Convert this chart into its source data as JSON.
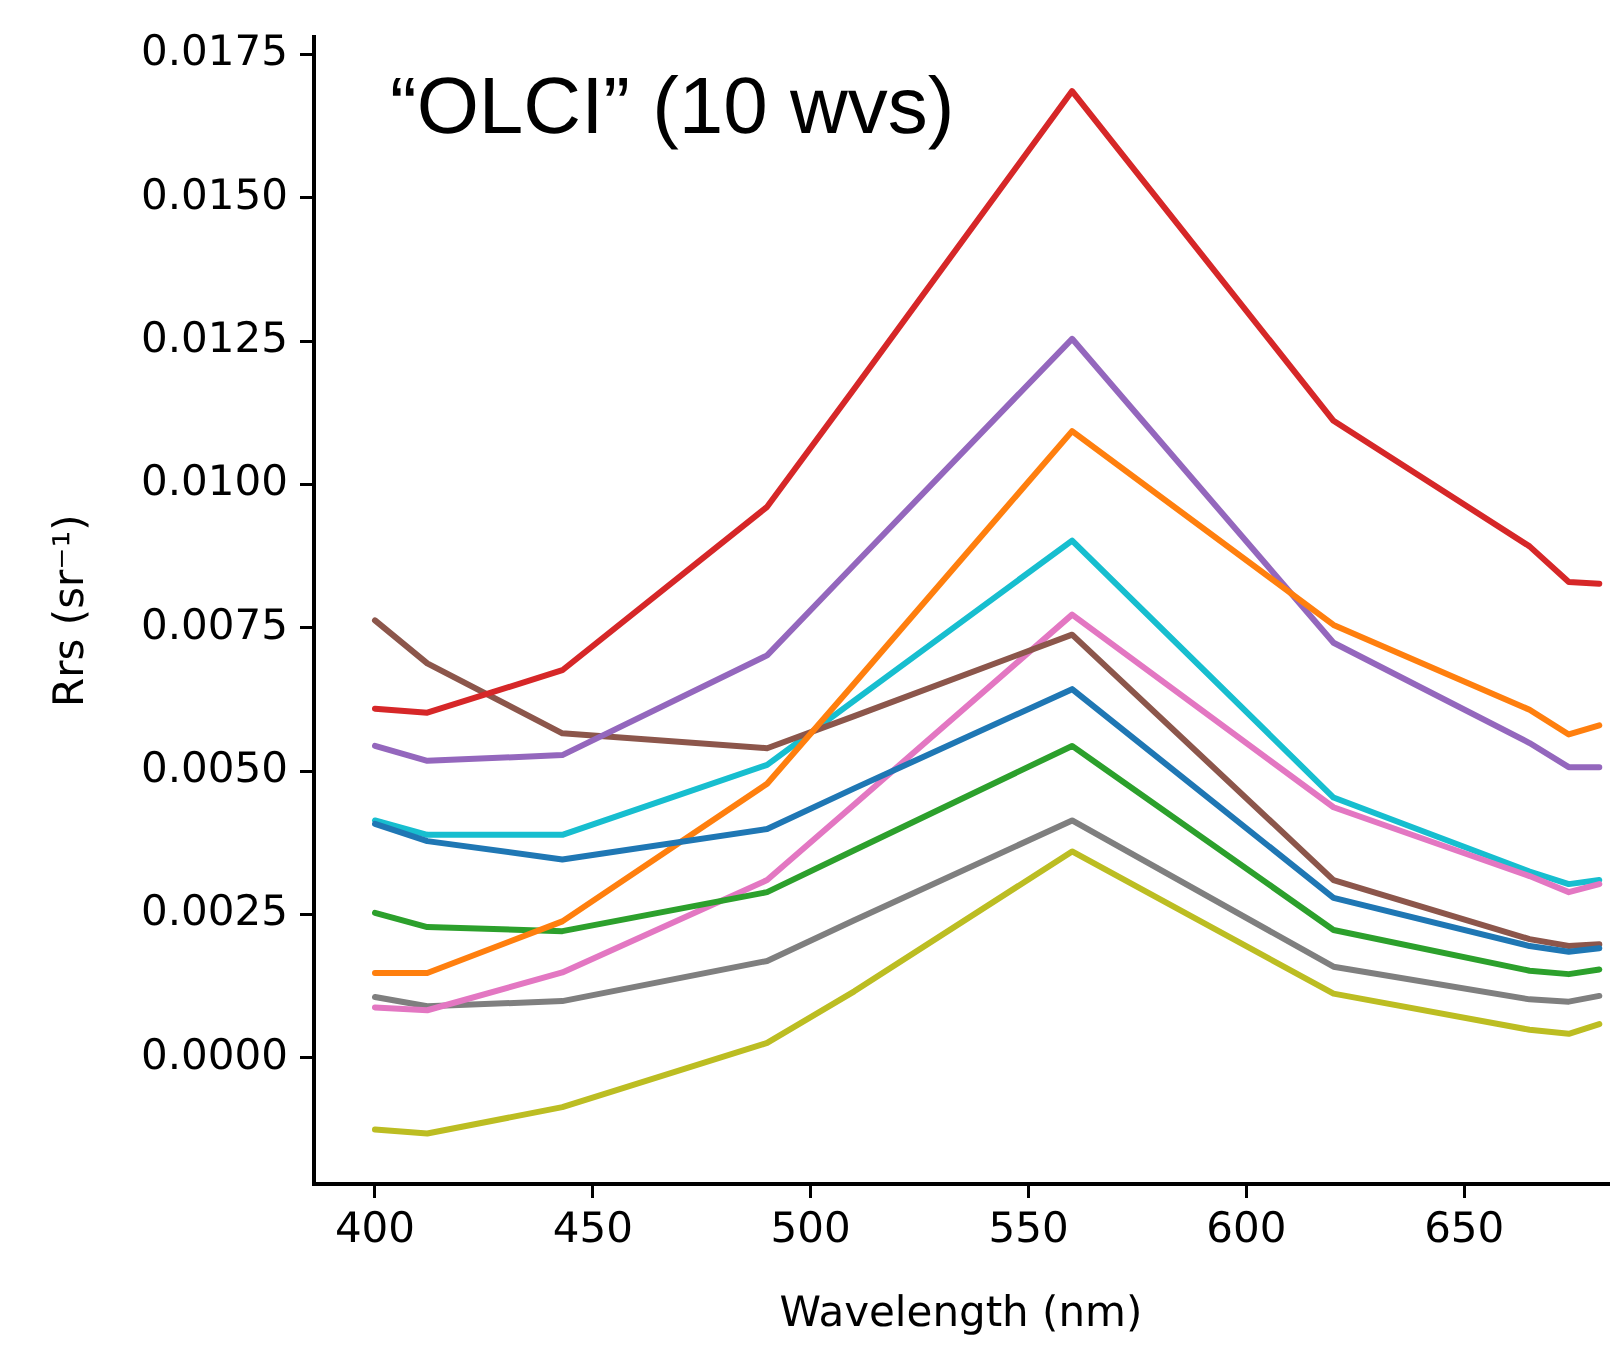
{
  "chart_data": {
    "type": "line",
    "title": "“OLCI” (10 wvs)",
    "xlabel": "Wavelength (nm)",
    "ylabel": "Rrs (sr⁻¹)",
    "x": [
      400,
      412,
      443,
      490,
      510,
      560,
      620,
      665,
      674,
      681
    ],
    "series": [
      {
        "color": "#1f77b4",
        "values": [
          0.00408,
          0.00378,
          0.00346,
          0.00399,
          0.0047,
          0.00643,
          0.00279,
          0.00195,
          0.00185,
          0.00191
        ]
      },
      {
        "color": "#ff7f0e",
        "values": [
          0.00148,
          0.00148,
          0.00238,
          0.00478,
          0.00653,
          0.01093,
          0.00755,
          0.00607,
          0.00564,
          0.0058
        ]
      },
      {
        "color": "#2ca02c",
        "values": [
          0.00253,
          0.00228,
          0.00221,
          0.00289,
          0.00362,
          0.00544,
          0.00223,
          0.00152,
          0.00146,
          0.00154
        ]
      },
      {
        "color": "#d62728",
        "values": [
          0.00609,
          0.00602,
          0.00676,
          0.00961,
          0.01167,
          0.01686,
          0.01111,
          0.00892,
          0.0083,
          0.00827
        ]
      },
      {
        "color": "#9467bd",
        "values": [
          0.00544,
          0.00518,
          0.00528,
          0.00702,
          0.0086,
          0.01254,
          0.00724,
          0.00549,
          0.00507,
          0.00507
        ]
      },
      {
        "color": "#8c564b",
        "values": [
          0.00763,
          0.00688,
          0.00566,
          0.0054,
          0.00596,
          0.00738,
          0.0031,
          0.00207,
          0.00195,
          0.00198
        ]
      },
      {
        "color": "#e377c2",
        "values": [
          0.00088,
          0.00083,
          0.00149,
          0.0031,
          0.00442,
          0.00773,
          0.00437,
          0.00317,
          0.00289,
          0.00303
        ]
      },
      {
        "color": "#7f7f7f",
        "values": [
          0.00106,
          0.0009,
          0.00099,
          0.00169,
          0.0024,
          0.00414,
          0.00159,
          0.00102,
          0.00098,
          0.00108
        ]
      },
      {
        "color": "#bcbd22",
        "values": [
          -0.00125,
          -0.00132,
          -0.00086,
          0.00026,
          0.00116,
          0.0036,
          0.00112,
          0.00049,
          0.00042,
          0.00059
        ]
      },
      {
        "color": "#17becf",
        "values": [
          0.00414,
          0.00389,
          0.00389,
          0.00511,
          0.00623,
          0.00902,
          0.00454,
          0.00325,
          0.00303,
          0.0031
        ]
      }
    ],
    "xlim": [
      386,
      683
    ],
    "xticks": [
      400,
      450,
      500,
      550,
      600,
      650
    ],
    "ylim": [
      -0.0022,
      0.0178
    ],
    "yticks": [
      {
        "value": 0,
        "label": "0.0000"
      },
      {
        "value": 0.0025,
        "label": "0.0025"
      },
      {
        "value": 0.005,
        "label": "0.0050"
      },
      {
        "value": 0.0075,
        "label": "0.0075"
      },
      {
        "value": 0.01,
        "label": "0.0100"
      },
      {
        "value": 0.0125,
        "label": "0.0125"
      },
      {
        "value": 0.015,
        "label": "0.0150"
      },
      {
        "value": 0.0175,
        "label": "0.0175"
      }
    ],
    "grid": false,
    "legend": false,
    "marker": "none",
    "line_style": "solid"
  }
}
